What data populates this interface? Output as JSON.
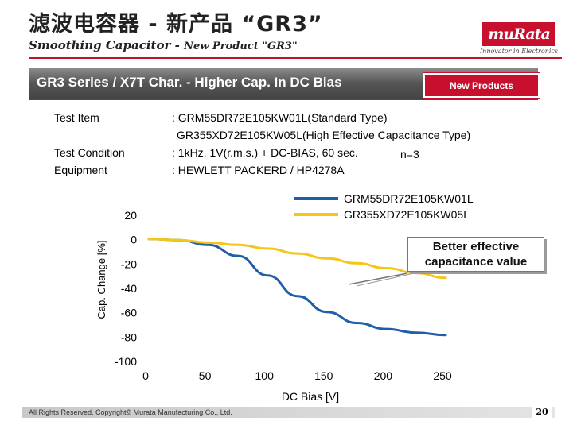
{
  "header": {
    "title_cn": "滤波电容器 - 新产品 “GR3”",
    "title_en_main": "Smoothing Capacitor -",
    "title_en_sub": "New Product \"GR3\"",
    "logo_text": "muRata",
    "logo_tagline": "Innovator in Electronics"
  },
  "banner": {
    "title": "GR3 Series / X7T Char. - Higher Cap. In DC Bias",
    "badge": "New Products"
  },
  "info": {
    "test_item_label": "Test Item",
    "test_item_value_1": ": GRM55DR72E105KW01L(Standard Type)",
    "test_item_value_2": "GR355XD72E105KW05L(High Effective Capacitance Type)",
    "test_condition_label": "Test Condition",
    "test_condition_value": ": 1kHz, 1V(r.m.s.) + DC-BIAS, 60 sec.",
    "test_condition_n": "n=3",
    "equipment_label": "Equipment",
    "equipment_value": ": HEWLETT PACKERD / HP4278A"
  },
  "callout": {
    "line1": "Better effective",
    "line2": "capacitance value"
  },
  "colors": {
    "accent_red": "#c8102e",
    "series_standard": "#1f5fa8",
    "series_high": "#f5c518"
  },
  "chart_data": {
    "type": "line",
    "xlabel": "DC Bias [V]",
    "ylabel": "Cap. Change [%]",
    "xlim": [
      0,
      250
    ],
    "ylim": [
      -100,
      20
    ],
    "xticks": [
      0,
      50,
      100,
      150,
      200,
      250
    ],
    "yticks": [
      20,
      0,
      -20,
      -40,
      -60,
      -80,
      -100
    ],
    "grid": false,
    "legend": "top-right",
    "series": [
      {
        "name": "GRM55DR72E105KW01L",
        "color": "#1f5fa8",
        "x": [
          0,
          25,
          50,
          75,
          100,
          125,
          150,
          175,
          200,
          225,
          250
        ],
        "y": [
          0,
          -1,
          -5,
          -14,
          -30,
          -47,
          -60,
          -69,
          -74,
          -77,
          -79
        ]
      },
      {
        "name": "GR355XD72E105KW05L",
        "color": "#f5c518",
        "x": [
          0,
          25,
          50,
          75,
          100,
          125,
          150,
          175,
          200,
          225,
          250
        ],
        "y": [
          0,
          -1,
          -3,
          -5,
          -8,
          -12,
          -16,
          -20,
          -24,
          -28,
          -32
        ]
      }
    ]
  },
  "footer": {
    "copyright": "All Rights Reserved, Copyright© Murata Manufacturing Co., Ltd.",
    "page_number": "20"
  }
}
